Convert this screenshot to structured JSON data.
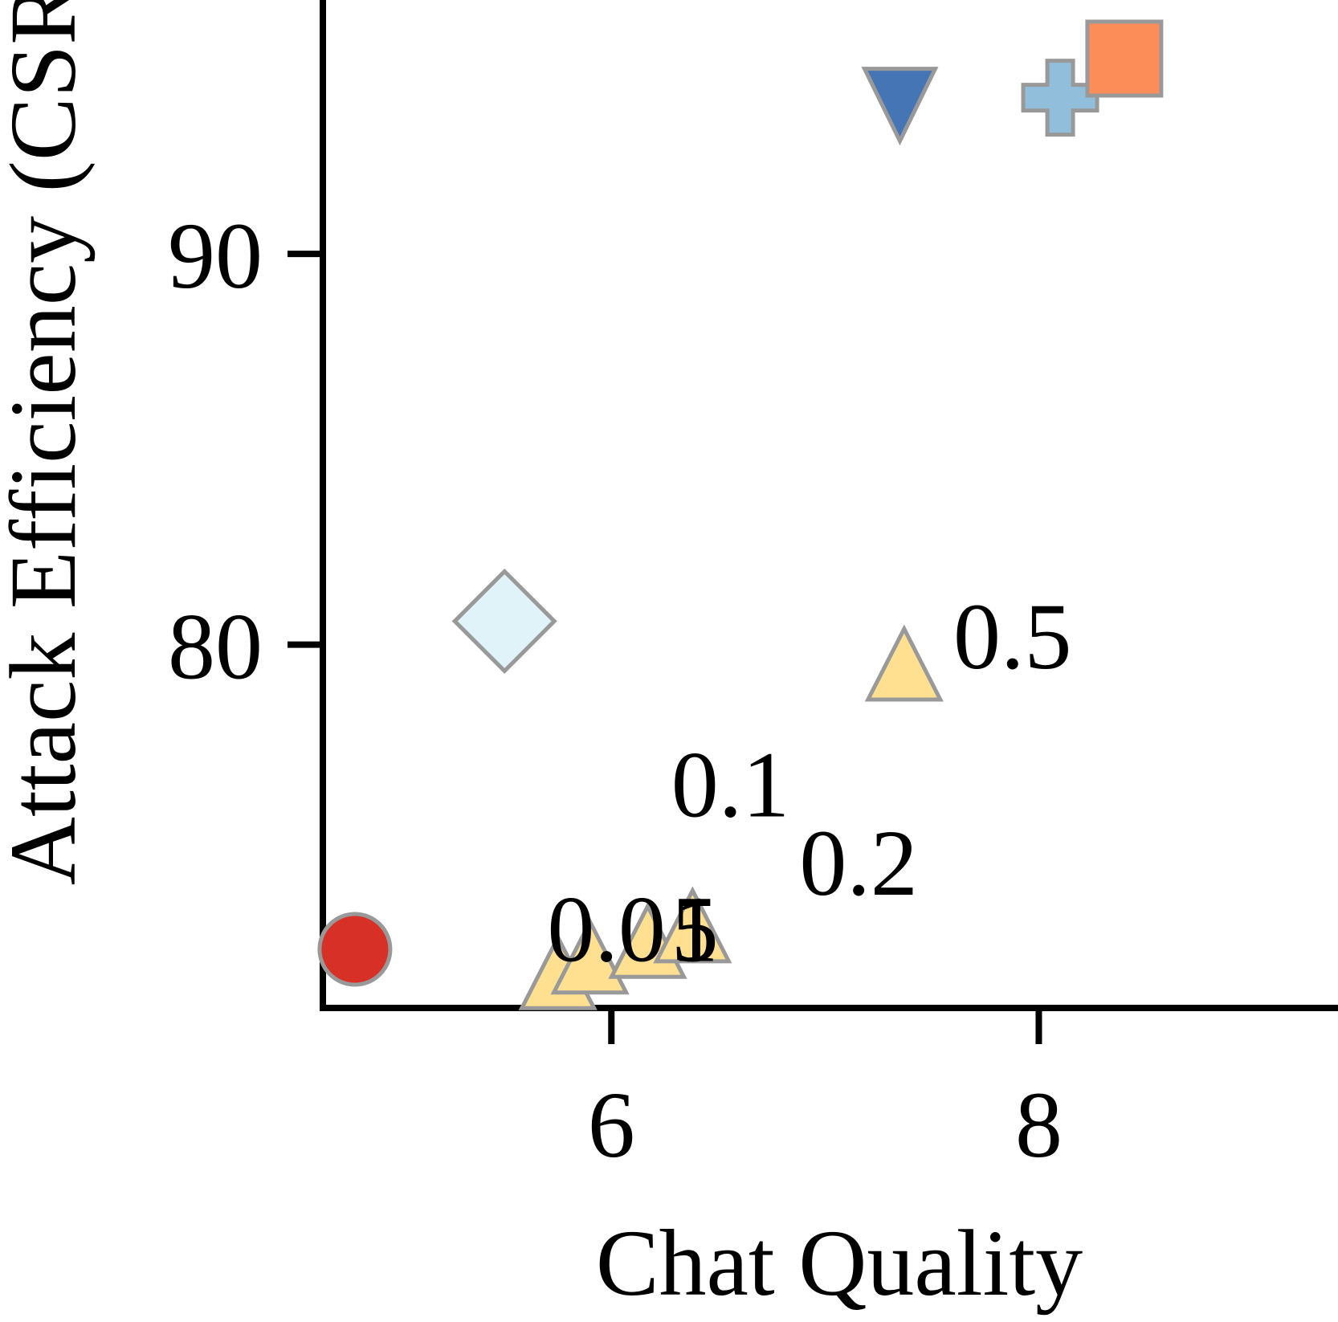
{
  "chart_data": {
    "type": "scatter",
    "title": "",
    "xlabel": "Chat Quality",
    "ylabel": "Attack Efficiency (CSR)",
    "xlim": [
      4.65,
      9.4
    ],
    "ylim": [
      70.7,
      96.5
    ],
    "xticks": [
      6,
      8
    ],
    "yticks": [
      80,
      90
    ],
    "grid": false,
    "points": [
      {
        "x": 4.8,
        "y": 72.2,
        "marker": "circle",
        "color": "#d73027"
      },
      {
        "x": 5.5,
        "y": 80.6,
        "marker": "diamond",
        "color": "#e0f3f8"
      },
      {
        "x": 7.35,
        "y": 94.0,
        "marker": "triangle-down",
        "color": "#4575b4"
      },
      {
        "x": 8.1,
        "y": 94.0,
        "marker": "plus",
        "color": "#91bfdb"
      },
      {
        "x": 8.4,
        "y": 95.0,
        "marker": "square",
        "color": "#fc8d59"
      }
    ],
    "series": [
      {
        "marker": "triangle",
        "color": "#fee090",
        "points": [
          {
            "x": 5.75,
            "y": 71.6,
            "label": "0.01"
          },
          {
            "x": 5.9,
            "y": 72.0,
            "label": "0.05"
          },
          {
            "x": 6.17,
            "y": 72.4,
            "label": "0.1"
          },
          {
            "x": 6.38,
            "y": 72.8,
            "label": "0.2"
          },
          {
            "x": 7.37,
            "y": 79.5,
            "label": "0.5"
          }
        ]
      }
    ],
    "annotations": [
      {
        "text": "0.0",
        "x": 5.7,
        "y": 71.9
      },
      {
        "text": "5",
        "x": 6.28,
        "y": 71.9
      },
      {
        "text": "1",
        "x": 6.28,
        "y": 71.9
      },
      {
        "text": "0.1",
        "x": 6.28,
        "y": 75.6
      },
      {
        "text": "0.2",
        "x": 6.88,
        "y": 73.6
      },
      {
        "text": "0.5",
        "x": 7.6,
        "y": 79.4
      }
    ]
  }
}
